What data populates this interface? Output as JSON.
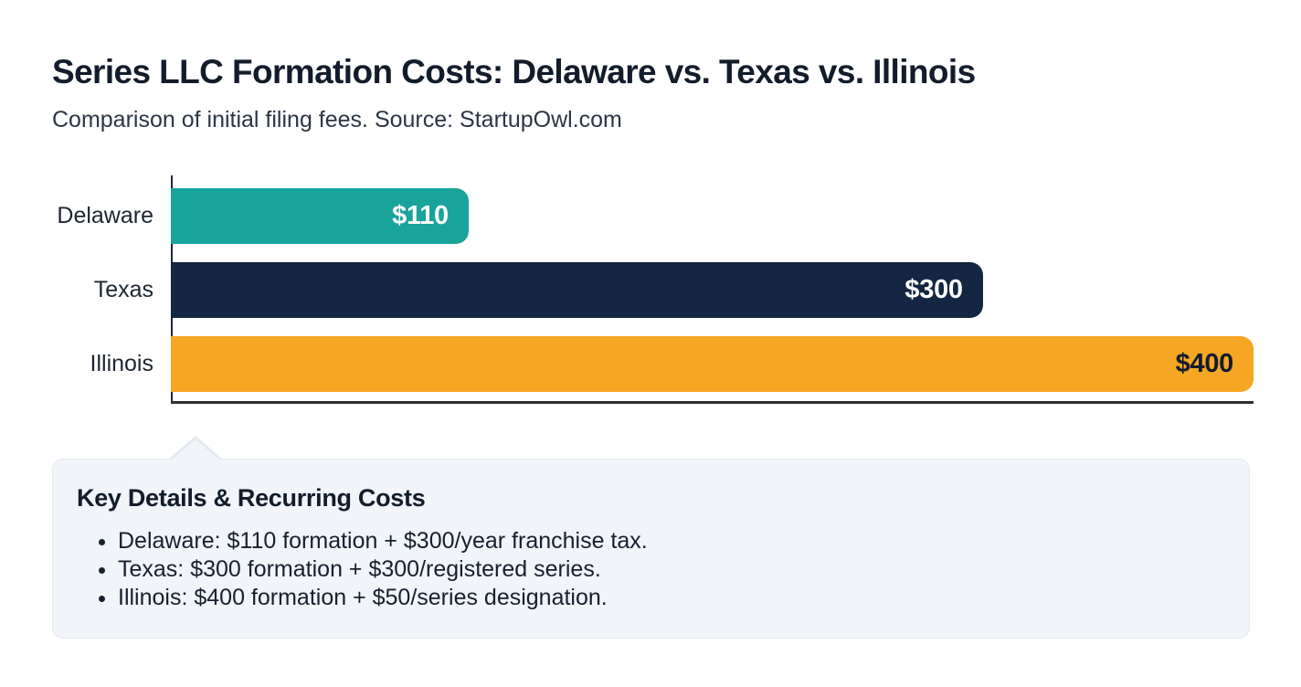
{
  "header": {
    "title": "Series LLC Formation Costs: Delaware vs. Texas vs. Illinois",
    "subtitle": "Comparison of initial filing fees. Source: StartupOwl.com"
  },
  "chart_data": {
    "type": "bar",
    "orientation": "horizontal",
    "title": "Series LLC Formation Costs: Delaware vs. Texas vs. Illinois",
    "categories": [
      "Delaware",
      "Texas",
      "Illinois"
    ],
    "values": [
      110,
      300,
      400
    ],
    "value_labels": [
      "$110",
      "$300",
      "$400"
    ],
    "bar_colors": [
      "#18a39b",
      "#132642",
      "#f5a623"
    ],
    "value_label_colors": [
      "#ffffff",
      "#ffffff",
      "#131b2e"
    ],
    "xlim": [
      0,
      400
    ],
    "grid": false,
    "legend": false,
    "axis_color": "#1f2937"
  },
  "callout": {
    "heading": "Key Details & Recurring Costs",
    "items": [
      "Delaware: $110 formation + $300/year franchise tax.",
      "Texas: $300 formation + $300/registered series.",
      "Illinois: $400 formation + $50/series designation."
    ],
    "background": "#f1f4f8",
    "border_color": "#e4e9ef"
  }
}
